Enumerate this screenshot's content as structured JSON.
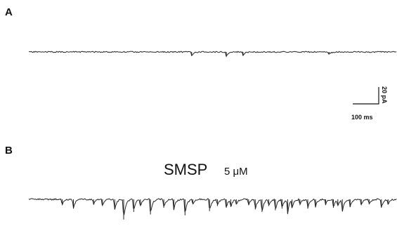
{
  "figure": {
    "panel_a_label": "A",
    "panel_b_label": "B",
    "annotation_b_drug": "SMSP",
    "annotation_b_conc": "5 μM",
    "scalebar": {
      "current_label": "20 pA",
      "time_label": "100 ms",
      "current_pA": 20,
      "time_ms": 100
    },
    "trace_color": "#222222"
  },
  "chart_data": [
    {
      "type": "line",
      "panel": "A",
      "title": "",
      "xlabel": "",
      "ylabel": "",
      "x_unit": "ms",
      "y_unit": "pA",
      "duration_ms": 1650,
      "baseline_pA": 0,
      "noise_pA": 0.7,
      "events": [
        {
          "t_ms": 730,
          "amp_pA": -5
        },
        {
          "t_ms": 885,
          "amp_pA": -6
        },
        {
          "t_ms": 960,
          "amp_pA": -4
        },
        {
          "t_ms": 1345,
          "amp_pA": -3
        }
      ]
    },
    {
      "type": "line",
      "panel": "B",
      "title": "",
      "xlabel": "",
      "ylabel": "",
      "x_unit": "ms",
      "y_unit": "pA",
      "duration_ms": 1650,
      "baseline_pA": 0,
      "noise_pA": 0.9,
      "events": [
        {
          "t_ms": 150,
          "amp_pA": -7
        },
        {
          "t_ms": 200,
          "amp_pA": -11
        },
        {
          "t_ms": 290,
          "amp_pA": -6
        },
        {
          "t_ms": 330,
          "amp_pA": -8
        },
        {
          "t_ms": 385,
          "amp_pA": -12
        },
        {
          "t_ms": 425,
          "amp_pA": -24
        },
        {
          "t_ms": 470,
          "amp_pA": -15
        },
        {
          "t_ms": 500,
          "amp_pA": -8
        },
        {
          "t_ms": 545,
          "amp_pA": -18
        },
        {
          "t_ms": 605,
          "amp_pA": -10
        },
        {
          "t_ms": 650,
          "amp_pA": -12
        },
        {
          "t_ms": 700,
          "amp_pA": -19
        },
        {
          "t_ms": 735,
          "amp_pA": -6
        },
        {
          "t_ms": 810,
          "amp_pA": -14
        },
        {
          "t_ms": 845,
          "amp_pA": -8
        },
        {
          "t_ms": 885,
          "amp_pA": -10
        },
        {
          "t_ms": 905,
          "amp_pA": -9
        },
        {
          "t_ms": 930,
          "amp_pA": -6
        },
        {
          "t_ms": 985,
          "amp_pA": -7
        },
        {
          "t_ms": 1015,
          "amp_pA": -12
        },
        {
          "t_ms": 1045,
          "amp_pA": -15
        },
        {
          "t_ms": 1075,
          "amp_pA": -8
        },
        {
          "t_ms": 1105,
          "amp_pA": -13
        },
        {
          "t_ms": 1135,
          "amp_pA": -11
        },
        {
          "t_ms": 1160,
          "amp_pA": -16
        },
        {
          "t_ms": 1180,
          "amp_pA": -10
        },
        {
          "t_ms": 1215,
          "amp_pA": -7
        },
        {
          "t_ms": 1250,
          "amp_pA": -11
        },
        {
          "t_ms": 1285,
          "amp_pA": -9
        },
        {
          "t_ms": 1330,
          "amp_pA": -6
        },
        {
          "t_ms": 1365,
          "amp_pA": -10
        },
        {
          "t_ms": 1385,
          "amp_pA": -8
        },
        {
          "t_ms": 1405,
          "amp_pA": -14
        },
        {
          "t_ms": 1440,
          "amp_pA": -9
        },
        {
          "t_ms": 1490,
          "amp_pA": -7
        },
        {
          "t_ms": 1525,
          "amp_pA": -6
        },
        {
          "t_ms": 1580,
          "amp_pA": -10
        },
        {
          "t_ms": 1610,
          "amp_pA": -6
        }
      ]
    }
  ]
}
